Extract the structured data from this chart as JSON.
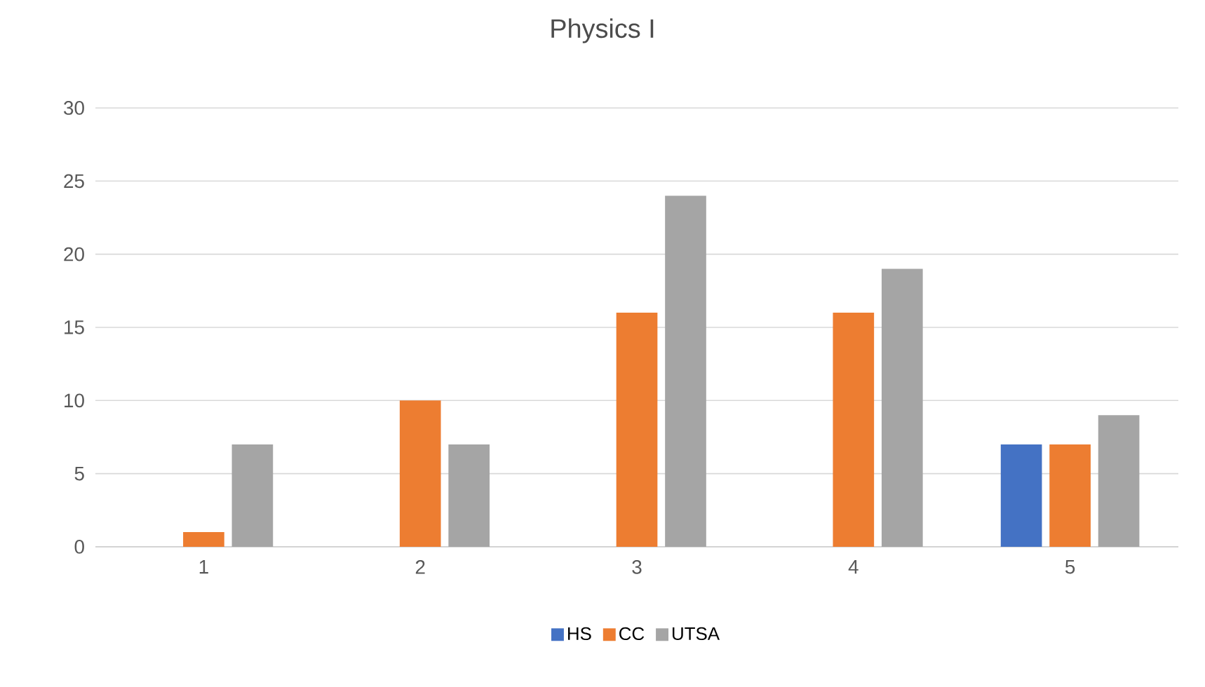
{
  "chart_data": {
    "type": "bar",
    "title": "Physics I",
    "categories": [
      "1",
      "2",
      "3",
      "4",
      "5"
    ],
    "series": [
      {
        "name": "HS",
        "color": "#4472c4",
        "values": [
          0,
          0,
          0,
          0,
          7
        ]
      },
      {
        "name": "CC",
        "color": "#ed7d31",
        "values": [
          1,
          10,
          16,
          16,
          7
        ]
      },
      {
        "name": "UTSA",
        "color": "#a5a5a5",
        "values": [
          7,
          7,
          24,
          19,
          9
        ]
      }
    ],
    "ylim": [
      0,
      30
    ],
    "yticks": [
      0,
      5,
      10,
      15,
      20,
      25,
      30
    ],
    "grid": "y",
    "legend": "bottom"
  }
}
